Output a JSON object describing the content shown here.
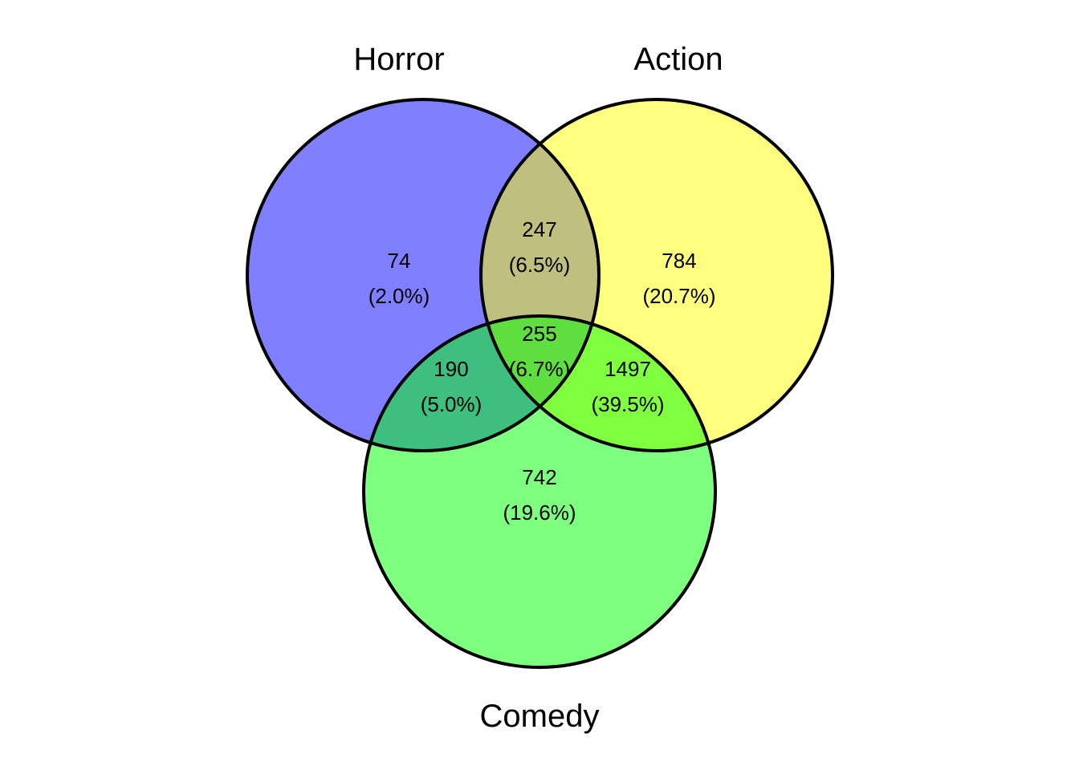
{
  "diagram": {
    "type": "venn3",
    "colors": {
      "horror": "#0000ff",
      "action": "#ffff00",
      "comedy": "#00ff00",
      "outline": "#000000"
    },
    "fill_opacity": 0.5,
    "sets": {
      "horror": {
        "label": "Horror"
      },
      "action": {
        "label": "Action"
      },
      "comedy": {
        "label": "Comedy"
      }
    },
    "regions": {
      "horror_only": {
        "count": "74",
        "pct": "(2.0%)"
      },
      "horror_action": {
        "count": "247",
        "pct": "(6.5%)"
      },
      "action_only": {
        "count": "784",
        "pct": "(20.7%)"
      },
      "all_three": {
        "count": "255",
        "pct": "(6.7%)"
      },
      "horror_comedy": {
        "count": "190",
        "pct": "(5.0%)"
      },
      "action_comedy": {
        "count": "1497",
        "pct": "(39.5%)"
      },
      "comedy_only": {
        "count": "742",
        "pct": "(19.6%)"
      }
    }
  }
}
